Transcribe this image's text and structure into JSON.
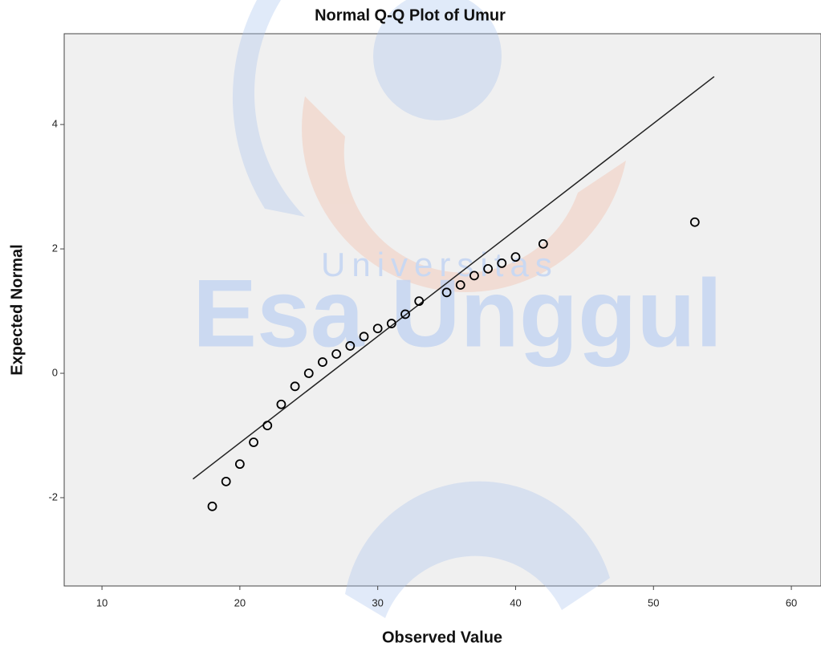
{
  "chart_data": {
    "type": "scatter",
    "title": "Normal Q-Q Plot of Umur",
    "x_label": "Observed Value",
    "y_label": "Expected Normal",
    "watermark": [
      "Universitas",
      "Esa Unggul"
    ],
    "x": [
      18,
      19,
      20,
      21,
      22,
      23,
      24,
      25,
      26,
      27,
      28,
      29,
      30,
      31,
      32,
      33,
      35,
      36,
      37,
      38,
      39,
      40,
      42,
      53
    ],
    "values": [
      -2.14,
      -1.74,
      -1.46,
      -1.11,
      -0.84,
      -0.5,
      -0.21,
      0.0,
      0.18,
      0.31,
      0.44,
      0.59,
      0.72,
      0.8,
      0.95,
      1.16,
      1.3,
      1.42,
      1.57,
      1.68,
      1.77,
      1.87,
      2.08,
      2.43
    ],
    "color": "#000000",
    "reference_line": {
      "x": [
        16.6,
        54.4
      ],
      "y": [
        -1.7,
        4.77
      ],
      "color": "#222222"
    },
    "xlim": [
      7.26,
      62.15
    ],
    "ylim": [
      -3.42,
      5.46
    ],
    "xticks": [
      10,
      20,
      30,
      40,
      50,
      60
    ],
    "yticks": [
      -2,
      0,
      2,
      4
    ],
    "background": "#f0f0f0"
  }
}
